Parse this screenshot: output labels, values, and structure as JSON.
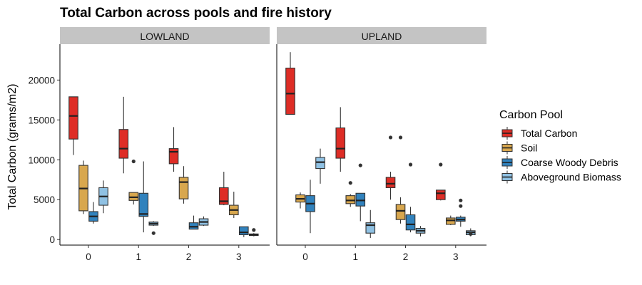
{
  "chart_data": {
    "type": "boxplot",
    "title": "Total Carbon across pools and fire history",
    "xlabel": "",
    "ylabel": "Total Carbon (grams/m2)",
    "ylim": [
      -700,
      24500
    ],
    "y_ticks": [
      0,
      5000,
      10000,
      15000,
      20000
    ],
    "categories": [
      "0",
      "1",
      "2",
      "3"
    ],
    "legend": {
      "title": "Carbon Pool",
      "placement": "right",
      "entries": [
        "Total Carbon",
        "Soil",
        "Coarse Woody Debris",
        "Aboveground Biomass"
      ]
    },
    "colors": {
      "Total Carbon": "#de2d26",
      "Soil": "#d8a74e",
      "Coarse Woody Debris": "#3182bd",
      "Aboveground Biomass": "#8fc1e3",
      "strip": "#c4c4c4"
    },
    "facets": [
      {
        "label": "LOWLAND",
        "series": [
          {
            "name": "Total Carbon",
            "boxes": [
              {
                "x": "0",
                "min": 10600,
                "q1": 12600,
                "median": 15500,
                "q3": 17900,
                "max": 17900,
                "outliers": []
              },
              {
                "x": "1",
                "min": 8300,
                "q1": 10200,
                "median": 11400,
                "q3": 13800,
                "max": 17900,
                "outliers": []
              },
              {
                "x": "2",
                "min": 8500,
                "q1": 9500,
                "median": 11000,
                "q3": 11400,
                "max": 14100,
                "outliers": []
              },
              {
                "x": "3",
                "min": 4300,
                "q1": 4400,
                "median": 4800,
                "q3": 6500,
                "max": 8500,
                "outliers": []
              }
            ]
          },
          {
            "name": "Soil",
            "boxes": [
              {
                "x": "0",
                "min": 3200,
                "q1": 3600,
                "median": 6400,
                "q3": 9300,
                "max": 9900,
                "outliers": []
              },
              {
                "x": "1",
                "min": 4400,
                "q1": 4900,
                "median": 5300,
                "q3": 5900,
                "max": 5900,
                "outliers": [
                  9800
                ]
              },
              {
                "x": "2",
                "min": 4500,
                "q1": 5100,
                "median": 7200,
                "q3": 7800,
                "max": 9200,
                "outliers": []
              },
              {
                "x": "3",
                "min": 2700,
                "q1": 3100,
                "median": 3700,
                "q3": 4300,
                "max": 6000,
                "outliers": []
              }
            ]
          },
          {
            "name": "Coarse Woody Debris",
            "boxes": [
              {
                "x": "0",
                "min": 2000,
                "q1": 2300,
                "median": 2900,
                "q3": 3500,
                "max": 4700,
                "outliers": []
              },
              {
                "x": "1",
                "min": 900,
                "q1": 2900,
                "median": 3200,
                "q3": 5800,
                "max": 9800,
                "outliers": []
              },
              {
                "x": "2",
                "min": 1300,
                "q1": 1300,
                "median": 1600,
                "q3": 2100,
                "max": 3000,
                "outliers": []
              },
              {
                "x": "3",
                "min": 300,
                "q1": 600,
                "median": 900,
                "q3": 1600,
                "max": 1600,
                "outliers": []
              }
            ]
          },
          {
            "name": "Aboveground Biomass",
            "boxes": [
              {
                "x": "0",
                "min": 3300,
                "q1": 4300,
                "median": 5400,
                "q3": 6500,
                "max": 7400,
                "outliers": []
              },
              {
                "x": "1",
                "min": 1700,
                "q1": 1800,
                "median": 2000,
                "q3": 2200,
                "max": 2300,
                "outliers": [
                  800
                ]
              },
              {
                "x": "2",
                "min": 1700,
                "q1": 1800,
                "median": 2200,
                "q3": 2600,
                "max": 2900,
                "outliers": []
              },
              {
                "x": "3",
                "min": 400,
                "q1": 500,
                "median": 600,
                "q3": 700,
                "max": 800,
                "outliers": [
                  1200
                ]
              }
            ]
          }
        ]
      },
      {
        "label": "UPLAND",
        "series": [
          {
            "name": "Total Carbon",
            "boxes": [
              {
                "x": "0",
                "min": 15700,
                "q1": 15700,
                "median": 18300,
                "q3": 21500,
                "max": 23500,
                "outliers": []
              },
              {
                "x": "1",
                "min": 8500,
                "q1": 10200,
                "median": 11400,
                "q3": 14000,
                "max": 16600,
                "outliers": []
              },
              {
                "x": "2",
                "min": 5000,
                "q1": 6500,
                "median": 7000,
                "q3": 7800,
                "max": 8500,
                "outliers": [
                  12800
                ]
              },
              {
                "x": "3",
                "min": 4900,
                "q1": 5000,
                "median": 5800,
                "q3": 6200,
                "max": 6200,
                "outliers": [
                  9400
                ]
              }
            ]
          },
          {
            "name": "Soil",
            "boxes": [
              {
                "x": "0",
                "min": 3900,
                "q1": 4700,
                "median": 5100,
                "q3": 5600,
                "max": 5900,
                "outliers": []
              },
              {
                "x": "1",
                "min": 4100,
                "q1": 4500,
                "median": 4900,
                "q3": 5500,
                "max": 5700,
                "outliers": [
                  7100
                ]
              },
              {
                "x": "2",
                "min": 2000,
                "q1": 2500,
                "median": 3600,
                "q3": 4400,
                "max": 5300,
                "outliers": [
                  12800
                ]
              },
              {
                "x": "3",
                "min": 1800,
                "q1": 1900,
                "median": 2400,
                "q3": 2700,
                "max": 3000,
                "outliers": []
              }
            ]
          },
          {
            "name": "Coarse Woody Debris",
            "boxes": [
              {
                "x": "0",
                "min": 800,
                "q1": 3500,
                "median": 4500,
                "q3": 5500,
                "max": 7500,
                "outliers": []
              },
              {
                "x": "1",
                "min": 2300,
                "q1": 4200,
                "median": 4900,
                "q3": 5800,
                "max": 5800,
                "outliers": [
                  9300
                ]
              },
              {
                "x": "2",
                "min": 900,
                "q1": 1200,
                "median": 1900,
                "q3": 3100,
                "max": 4100,
                "outliers": [
                  9400
                ]
              },
              {
                "x": "3",
                "min": 1600,
                "q1": 2300,
                "median": 2500,
                "q3": 2800,
                "max": 3000,
                "outliers": [
                  4200,
                  4900
                ]
              }
            ]
          },
          {
            "name": "Aboveground Biomass",
            "boxes": [
              {
                "x": "0",
                "min": 7000,
                "q1": 8900,
                "median": 9700,
                "q3": 10300,
                "max": 11400,
                "outliers": []
              },
              {
                "x": "1",
                "min": 200,
                "q1": 800,
                "median": 1800,
                "q3": 2100,
                "max": 3700,
                "outliers": []
              },
              {
                "x": "2",
                "min": 400,
                "q1": 800,
                "median": 1100,
                "q3": 1400,
                "max": 1700,
                "outliers": []
              },
              {
                "x": "3",
                "min": 400,
                "q1": 600,
                "median": 900,
                "q3": 1100,
                "max": 1400,
                "outliers": [
                  700
                ]
              }
            ]
          }
        ]
      }
    ]
  }
}
